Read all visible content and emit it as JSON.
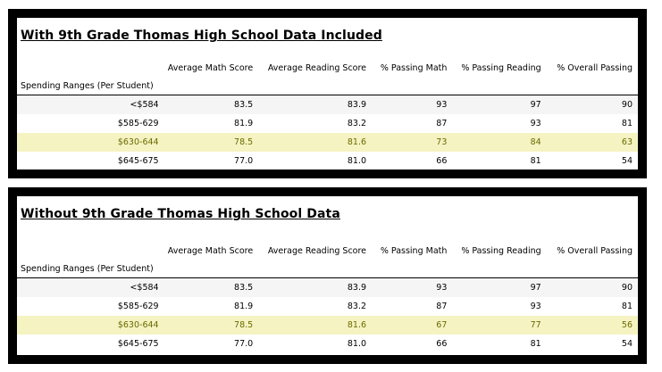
{
  "panels": [
    {
      "title": "With 9th Grade Thomas High School Data Included",
      "columns": [
        "Average Math Score",
        "Average Reading Score",
        "% Passing Math",
        "% Passing Reading",
        "% Overall Passing"
      ],
      "index_label": "Spending Ranges (Per Student)",
      "rows": [
        {
          "range": "<$584",
          "values": [
            "83.5",
            "83.9",
            "93",
            "97",
            "90"
          ]
        },
        {
          "range": "$585-629",
          "values": [
            "81.9",
            "83.2",
            "87",
            "93",
            "81"
          ]
        },
        {
          "range": "$630-644",
          "values": [
            "78.5",
            "81.6",
            "73",
            "84",
            "63"
          ]
        },
        {
          "range": "$645-675",
          "values": [
            "77.0",
            "81.0",
            "66",
            "81",
            "54"
          ]
        }
      ]
    },
    {
      "title": "Without 9th Grade Thomas High School Data",
      "columns": [
        "Average Math Score",
        "Average Reading Score",
        "% Passing Math",
        "% Passing Reading",
        "% Overall Passing"
      ],
      "index_label": "Spending Ranges (Per Student)",
      "rows": [
        {
          "range": "<$584",
          "values": [
            "83.5",
            "83.9",
            "93",
            "97",
            "90"
          ]
        },
        {
          "range": "$585-629",
          "values": [
            "81.9",
            "83.2",
            "87",
            "93",
            "81"
          ]
        },
        {
          "range": "$630-644",
          "values": [
            "78.5",
            "81.6",
            "67",
            "77",
            "56"
          ]
        },
        {
          "range": "$645-675",
          "values": [
            "77.0",
            "81.0",
            "66",
            "81",
            "54"
          ]
        }
      ]
    }
  ],
  "colors": {
    "highlight_row": "#f5f3c2",
    "highlight_text": "#6b6b00",
    "frame": "#000000"
  }
}
